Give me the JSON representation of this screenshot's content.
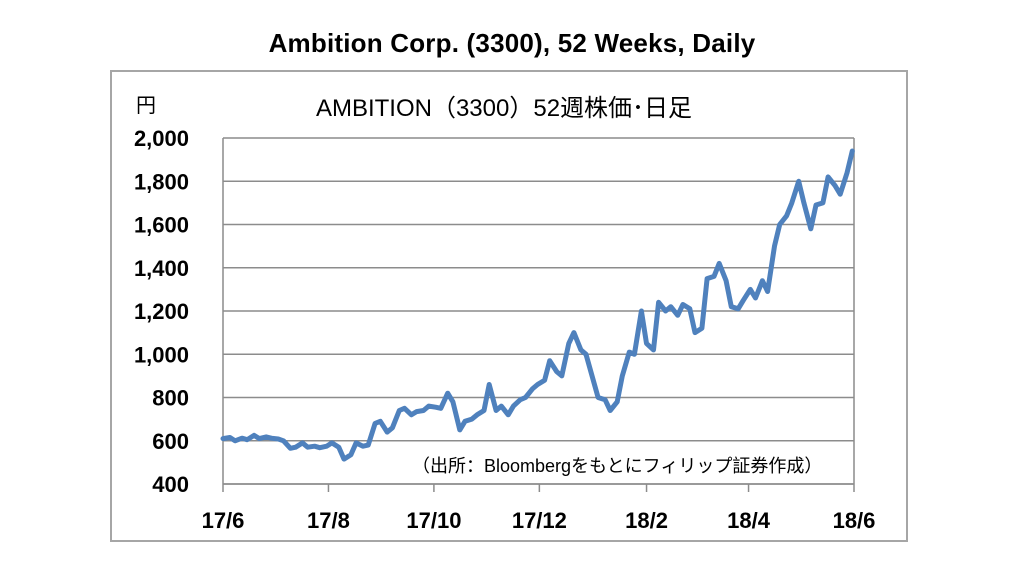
{
  "title": "Ambition Corp. (3300), 52 Weeks, Daily",
  "chart_data": {
    "type": "line",
    "inner_title": "AMBITION（3300）52週株価･日足",
    "yunit": "円",
    "source_note": "（出所：Bloombergをもとにフィリップ証券作成）",
    "x_ticks": [
      "17/6",
      "17/8",
      "17/10",
      "17/12",
      "18/2",
      "18/4",
      "18/6"
    ],
    "y_ticks": [
      "2,000",
      "1,800",
      "1,600",
      "1,400",
      "1,200",
      "1,000",
      "800",
      "600",
      "400"
    ],
    "ylim": [
      400,
      2000
    ],
    "grid": true,
    "line_color": "#4f81bd",
    "series": [
      {
        "x": [
          "2017-06-01",
          "2017-06-05",
          "2017-06-08",
          "2017-06-12",
          "2017-06-15",
          "2017-06-19",
          "2017-06-22",
          "2017-06-26",
          "2017-06-29",
          "2017-07-03",
          "2017-07-06",
          "2017-07-10",
          "2017-07-13",
          "2017-07-17",
          "2017-07-20",
          "2017-07-24",
          "2017-07-27",
          "2017-07-31",
          "2017-08-03",
          "2017-08-07",
          "2017-08-10",
          "2017-08-14",
          "2017-08-17",
          "2017-08-21",
          "2017-08-24",
          "2017-08-28",
          "2017-08-31",
          "2017-09-04",
          "2017-09-07",
          "2017-09-11",
          "2017-09-14",
          "2017-09-18",
          "2017-09-21",
          "2017-09-25",
          "2017-09-28",
          "2017-10-02",
          "2017-10-05",
          "2017-10-09",
          "2017-10-12",
          "2017-10-16",
          "2017-10-19",
          "2017-10-23",
          "2017-10-26",
          "2017-10-30",
          "2017-11-02",
          "2017-11-06",
          "2017-11-09",
          "2017-11-13",
          "2017-11-16",
          "2017-11-20",
          "2017-11-23",
          "2017-11-27",
          "2017-11-30",
          "2017-12-04",
          "2017-12-07",
          "2017-12-11",
          "2017-12-14",
          "2017-12-18",
          "2017-12-21",
          "2017-12-25",
          "2017-12-28",
          "2018-01-04",
          "2018-01-08",
          "2018-01-11",
          "2018-01-15",
          "2018-01-18",
          "2018-01-22",
          "2018-01-25",
          "2018-01-29",
          "2018-02-01",
          "2018-02-05",
          "2018-02-08",
          "2018-02-12",
          "2018-02-15",
          "2018-02-19",
          "2018-02-22",
          "2018-02-26",
          "2018-03-01",
          "2018-03-05",
          "2018-03-08",
          "2018-03-12",
          "2018-03-15",
          "2018-03-19",
          "2018-03-22",
          "2018-03-26",
          "2018-03-29",
          "2018-04-02",
          "2018-04-05",
          "2018-04-09",
          "2018-04-12",
          "2018-04-16",
          "2018-04-19",
          "2018-04-23",
          "2018-04-26",
          "2018-04-30",
          "2018-05-03",
          "2018-05-07",
          "2018-05-10",
          "2018-05-14",
          "2018-05-17",
          "2018-05-21",
          "2018-05-24",
          "2018-05-28",
          "2018-05-31"
        ],
        "values": [
          610,
          615,
          600,
          612,
          605,
          625,
          610,
          618,
          612,
          608,
          600,
          565,
          570,
          590,
          570,
          575,
          568,
          575,
          590,
          570,
          515,
          535,
          590,
          575,
          580,
          680,
          690,
          640,
          660,
          740,
          750,
          720,
          735,
          740,
          760,
          755,
          750,
          820,
          780,
          650,
          690,
          700,
          720,
          740,
          860,
          740,
          760,
          720,
          760,
          790,
          800,
          840,
          860,
          880,
          970,
          920,
          900,
          1050,
          1100,
          1020,
          1000,
          800,
          790,
          740,
          780,
          900,
          1010,
          1000,
          1200,
          1050,
          1020,
          1240,
          1200,
          1220,
          1180,
          1230,
          1210,
          1100,
          1120,
          1350,
          1360,
          1420,
          1340,
          1220,
          1210,
          1250,
          1300,
          1260,
          1340,
          1290,
          1500,
          1600,
          1640,
          1700,
          1800,
          1700,
          1580,
          1690,
          1700,
          1820,
          1780,
          1740,
          1840,
          1940
        ]
      }
    ]
  }
}
